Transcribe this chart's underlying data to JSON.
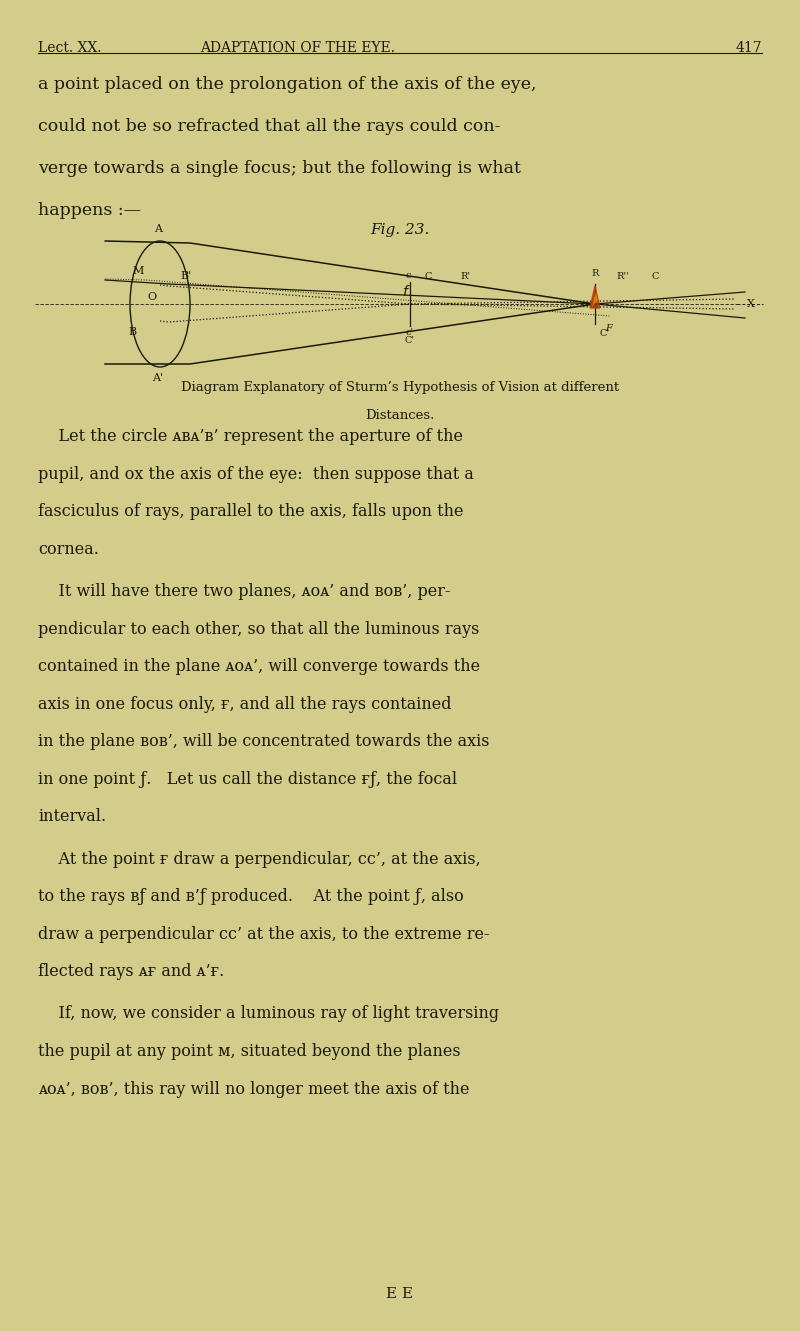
{
  "bg_color": "#d4cc8a",
  "page_width": 8.0,
  "page_height": 13.31,
  "header_text": "Lect. XX.  ADAPTATION OF THE EYE.   417",
  "fig_caption": "Fig. 23.",
  "diagram_caption_line1": "Diagram Explanatory of Sturm’s Hypothesis of Vision at different",
  "diagram_caption_line2": "Distances.",
  "body_paragraphs": [
    "    Let the circle ᴀʙᴀ’ʙ’ represent the aperture of the pupil, and oʜ the axis of the eye: then suppose that a fasciculus of rays, parallel to the axis, falls upon the cornea.",
    "    It will have there two planes, ᴀoᴀ’ and ʙoʙ’, perpendicular to each other, so that all the luminous rays contained in the plane ᴀoᴀ’, will converge towards the axis in one focus only, ғ, and all the rays contained in the plane ʙoʙ’, will be concentrated towards the axis in one point ƒ. Let us call the distance ғƒ, the focal interval.",
    "    At the point ғ draw a perpendicular, cc’, at the axis, to the rays ʙƒ and ʙ’ƒ produced. At the point ƒ, also draw a perpendicular cc’ at the axis, to the extreme reflected rays ᴀғ andᴀ’ғ.",
    "    If, now, we consider a luminous ray of light traversing the pupil at any point ᴍ, situated beyond the planes ᴀoᴀ’, ʙoʙ’, this ray will no longer meet the axis of the"
  ],
  "footer_text": "E E"
}
